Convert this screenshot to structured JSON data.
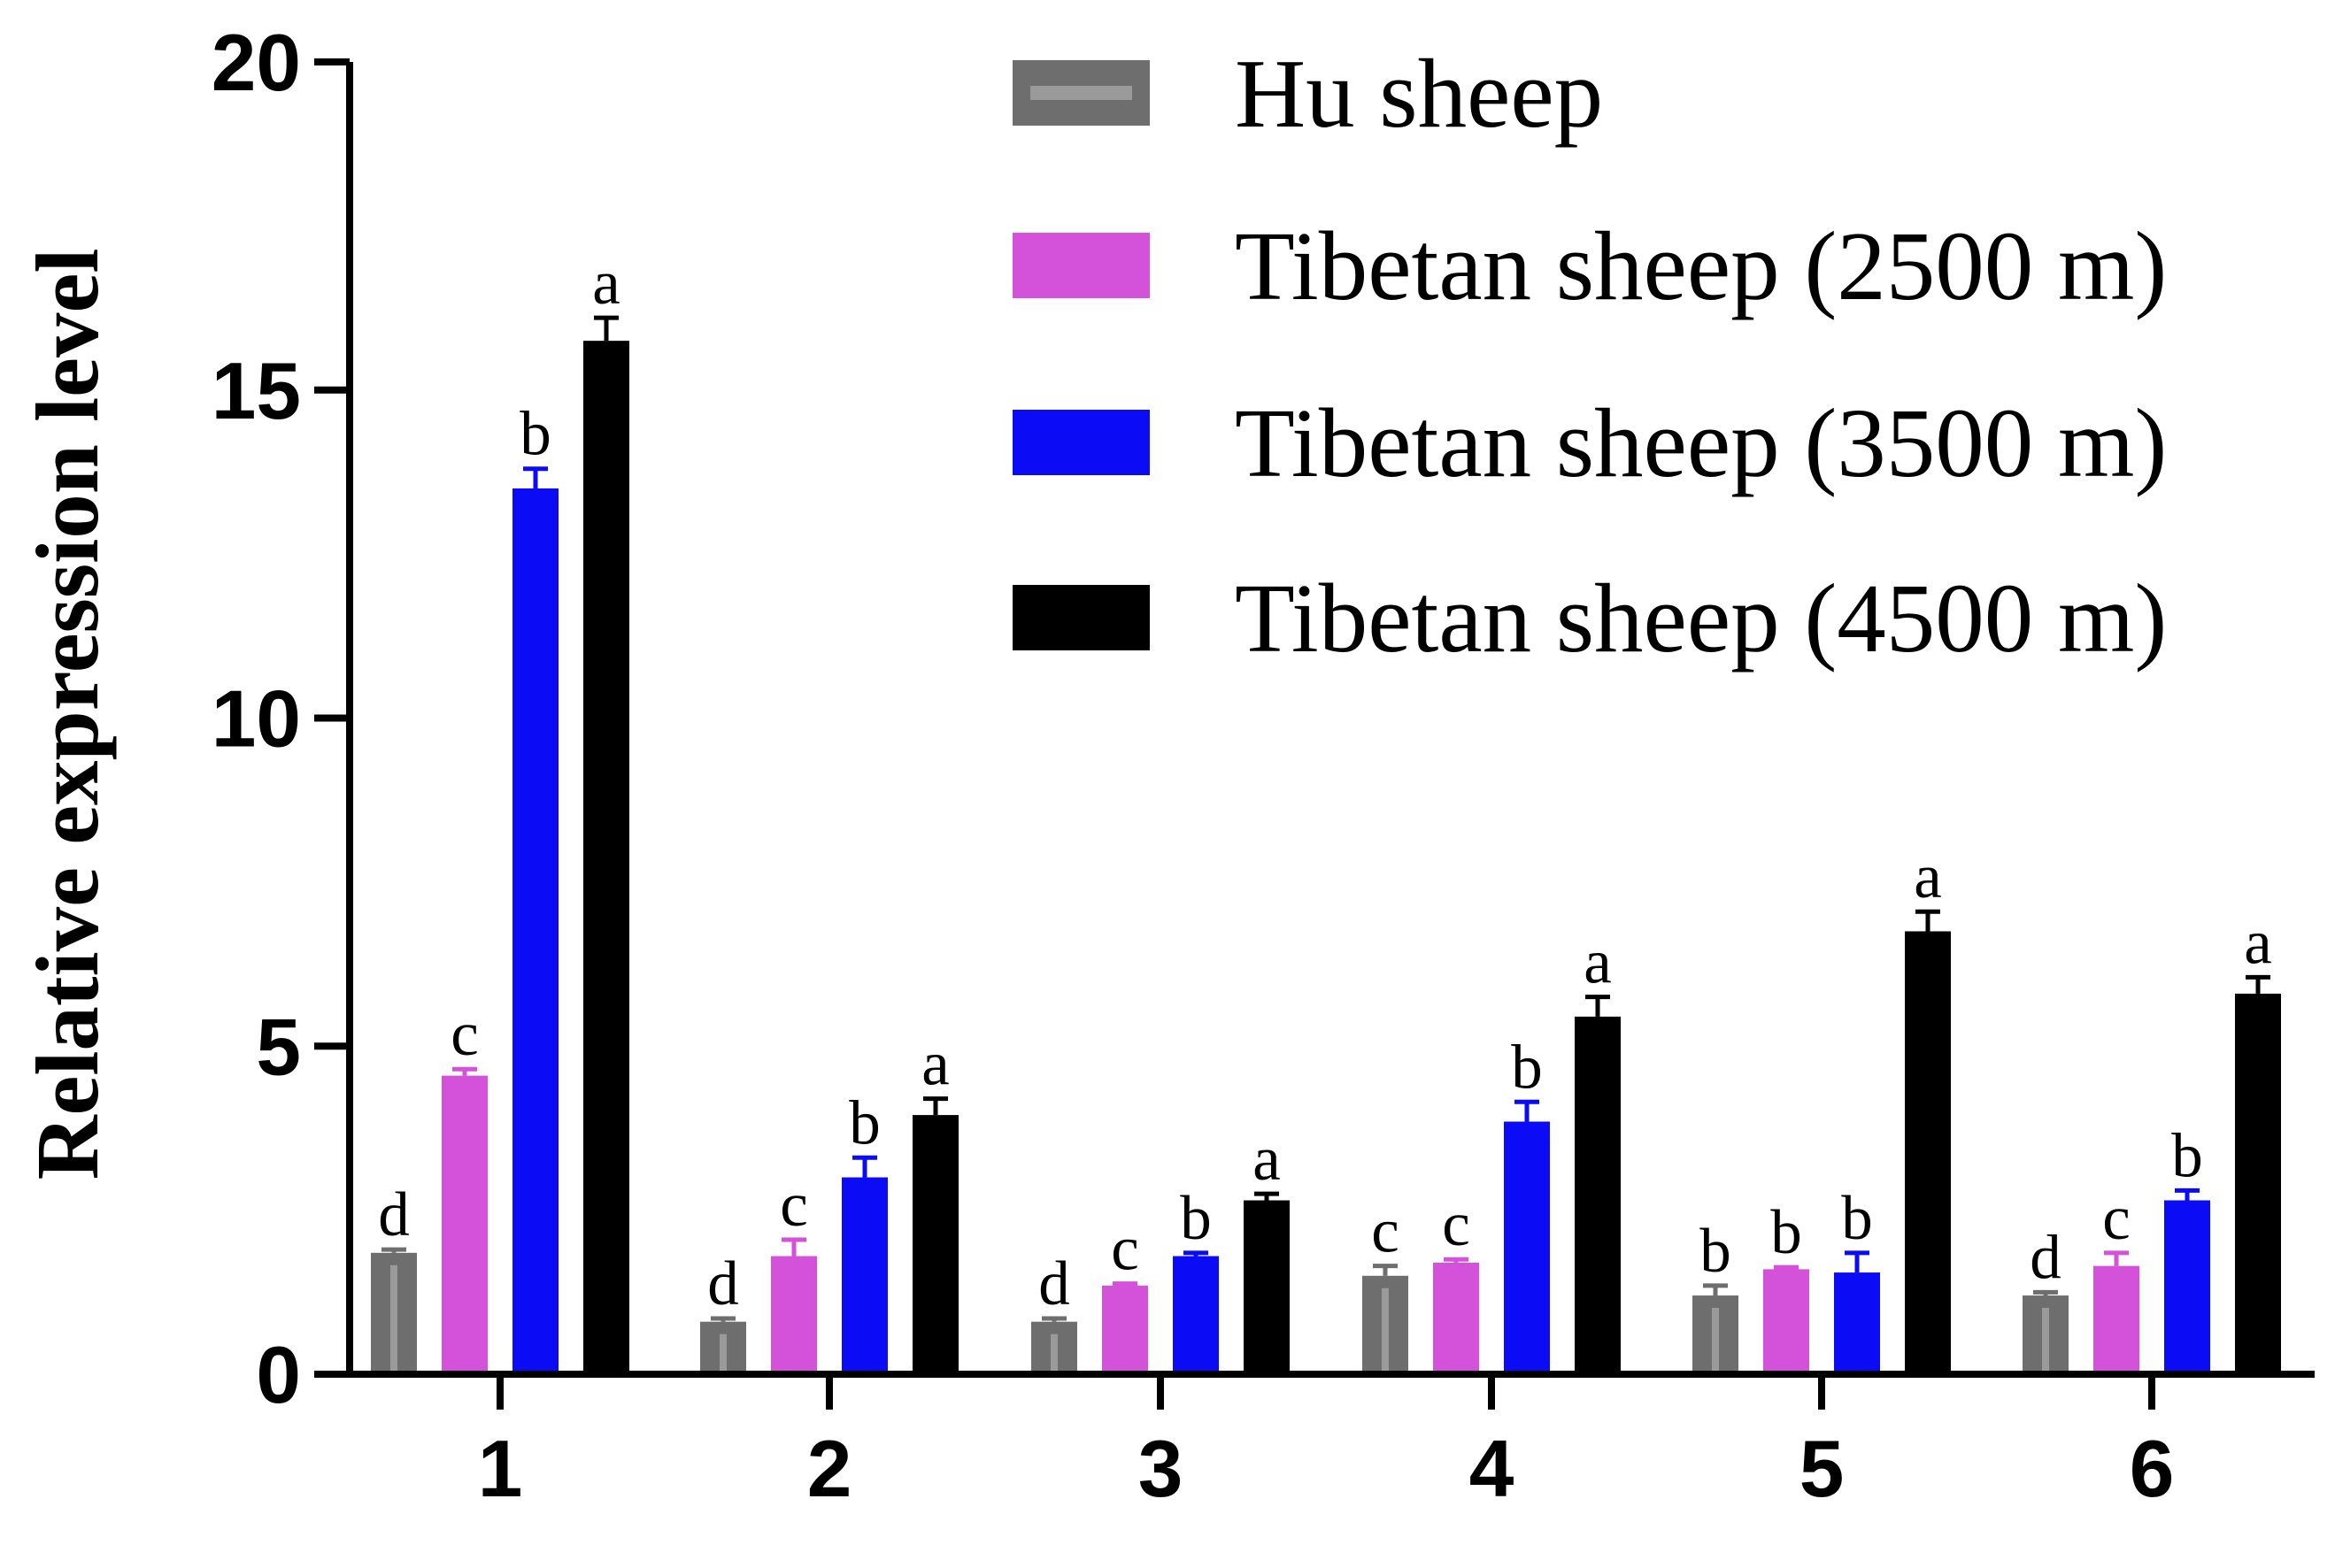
{
  "chart_data": {
    "type": "bar",
    "ylabel": "Relative expression level",
    "ylim": [
      0,
      20
    ],
    "yticks": [
      "0",
      "5",
      "10",
      "15",
      "20"
    ],
    "categories": [
      "1",
      "2",
      "3",
      "4",
      "5",
      "6"
    ],
    "legend_position": "top-right",
    "series": [
      {
        "name": "Hu sheep",
        "color": "#6e6e6e",
        "values": [
          1.85,
          0.8,
          0.8,
          1.5,
          1.2,
          1.2
        ],
        "errors": [
          0.05,
          0.05,
          0.05,
          0.15,
          0.15,
          0.05
        ],
        "labels": [
          "d",
          "d",
          "d",
          "c",
          "b",
          "d"
        ]
      },
      {
        "name": "Tibetan sheep (2500 m)",
        "color": "#d452d9",
        "values": [
          4.55,
          1.8,
          1.35,
          1.7,
          1.6,
          1.65
        ],
        "errors": [
          0.1,
          0.25,
          0.03,
          0.05,
          0.03,
          0.2
        ],
        "labels": [
          "c",
          "c",
          "c",
          "c",
          "b",
          "c"
        ]
      },
      {
        "name": "Tibetan sheep (3500 m)",
        "color": "#0b0bf5",
        "values": [
          13.5,
          3.0,
          1.8,
          3.85,
          1.55,
          2.65
        ],
        "errors": [
          0.3,
          0.3,
          0.05,
          0.3,
          0.3,
          0.15
        ],
        "labels": [
          "b",
          "b",
          "b",
          "b",
          "b",
          "b"
        ]
      },
      {
        "name": "Tibetan sheep (4500 m)",
        "color": "#000000",
        "values": [
          15.75,
          3.95,
          2.65,
          5.45,
          6.75,
          5.8
        ],
        "errors": [
          0.35,
          0.25,
          0.1,
          0.3,
          0.3,
          0.25
        ],
        "labels": [
          "a",
          "a",
          "a",
          "a",
          "a",
          "a"
        ]
      }
    ]
  }
}
